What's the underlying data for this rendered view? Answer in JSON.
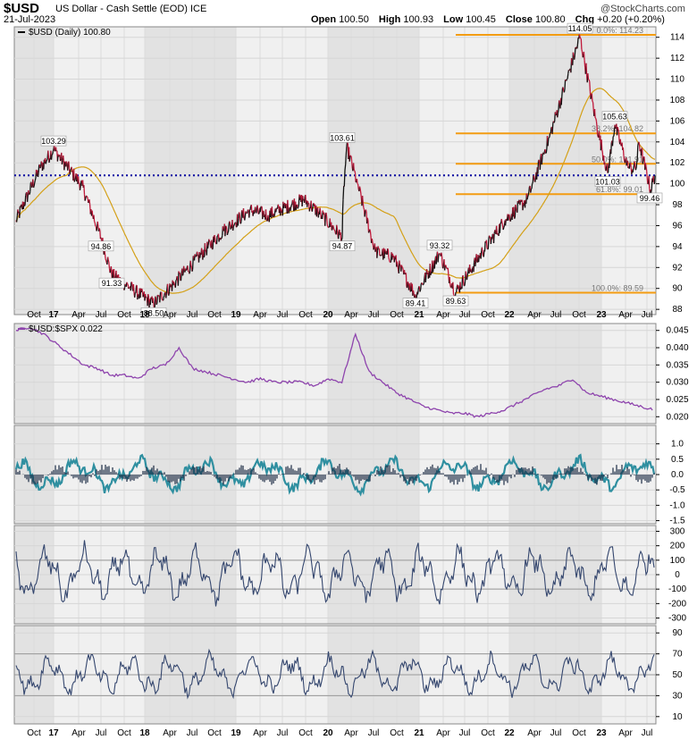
{
  "header": {
    "symbol": "$USD",
    "name": "US Dollar - Cash Settle (EOD)",
    "exchange": "ICE",
    "date": "21-Jul-2023",
    "open_label": "Open",
    "open": "100.50",
    "high_label": "High",
    "high": "100.93",
    "low_label": "Low",
    "low": "100.45",
    "close_label": "Close",
    "close": "100.80",
    "chg_label": "Chg",
    "chg": "+0.20 (+0.20%)",
    "brand": "@StockCharts.com"
  },
  "chart_data": [
    {
      "type": "line",
      "legend": "$USD (Daily) 100.80",
      "series_color": "#c0183a",
      "ma_color": "#d4a017",
      "ylim": [
        87.5,
        115
      ],
      "yticks": [
        88,
        90,
        92,
        94,
        96,
        98,
        100,
        102,
        104,
        106,
        108,
        110,
        112,
        114
      ],
      "x": [
        "Sep 2016",
        "Dec 2016",
        "Feb 2017",
        "May 2017",
        "Jul 2017",
        "Dec 2017",
        "Mar 2018",
        "Apr 2018",
        "Aug 2018",
        "Oct 2018",
        "Mar 2019",
        "Oct 2019",
        "Dec 2019",
        "Mar 2020",
        "Mar 2020 low",
        "Mar 2020 high",
        "May 2020",
        "Aug 2020",
        "Oct 2020",
        "Jan 2021",
        "Mar 2021",
        "May 2021",
        "Sep 2021",
        "Nov 2021",
        "Mar 2022",
        "Jun 2022",
        "Sep 2022",
        "Nov 2022",
        "Jan 2023",
        "Mar 2023",
        "Apr 2023",
        "May 2023",
        "Jun 2023",
        "Jul 2023 low",
        "Jul 2023"
      ],
      "values": [
        96.5,
        101.5,
        103.29,
        99.8,
        94.86,
        91.33,
        88.5,
        90.5,
        95.5,
        97.5,
        97.0,
        98.5,
        97.0,
        94.87,
        98.5,
        103.61,
        100.0,
        93.5,
        93.0,
        89.41,
        93.32,
        89.63,
        93.5,
        96.5,
        98.5,
        104.5,
        114.05,
        105.5,
        101.03,
        105.63,
        101.5,
        101.5,
        104.0,
        99.46,
        100.8
      ],
      "labels": [
        {
          "text": "103.29",
          "x": "Feb 2017",
          "y": 103.29
        },
        {
          "text": "94.86",
          "x": "Jul 2017",
          "y": 94.86
        },
        {
          "text": "91.33",
          "x": "Dec 2017",
          "y": 91.33
        },
        {
          "text": "88.50",
          "x": "Mar 2018",
          "y": 88.5
        },
        {
          "text": "103.61",
          "x": "Mar 2020",
          "y": 103.61
        },
        {
          "text": "94.87",
          "x": "Mar 2020",
          "y": 94.87
        },
        {
          "text": "93.32",
          "x": "Mar 2021",
          "y": 93.32
        },
        {
          "text": "89.41",
          "x": "Jan 2021",
          "y": 89.41
        },
        {
          "text": "89.63",
          "x": "May 2021",
          "y": 89.63
        },
        {
          "text": "114.05",
          "x": "Sep 2022",
          "y": 114.05
        },
        {
          "text": "105.63",
          "x": "Mar 2023",
          "y": 105.63
        },
        {
          "text": "101.03",
          "x": "Jan 2023",
          "y": 101.03
        },
        {
          "text": "99.46",
          "x": "Jul 2023",
          "y": 99.46
        }
      ],
      "fib": [
        {
          "text": "0.0%: 114.23",
          "value": 114.23
        },
        {
          "text": "38.2%: 104.82",
          "value": 104.82
        },
        {
          "text": "50.0%: 101.91",
          "value": 101.91
        },
        {
          "text": "61.8%: 99.01",
          "value": 99.01
        },
        {
          "text": "100.0%: 89.59",
          "value": 89.59
        }
      ],
      "fib_color": "#f39c12",
      "ref_line": 100.8,
      "ref_color": "#0000a0"
    },
    {
      "type": "line",
      "legend": "$USD:$SPX 0.022",
      "color": "#8e44ad",
      "ylim": [
        0.018,
        0.047
      ],
      "yticks": [
        0.02,
        0.025,
        0.03,
        0.035,
        0.04,
        0.045
      ],
      "ytick_labels": [
        "0.020",
        "0.025",
        "0.030",
        "0.035",
        "0.040",
        "0.045"
      ],
      "values": [
        0.045,
        0.046,
        0.044,
        0.041,
        0.038,
        0.035,
        0.034,
        0.032,
        0.032,
        0.031,
        0.034,
        0.035,
        0.04,
        0.034,
        0.033,
        0.032,
        0.031,
        0.03,
        0.031,
        0.03,
        0.03,
        0.03,
        0.029,
        0.031,
        0.03,
        0.044,
        0.033,
        0.03,
        0.027,
        0.025,
        0.023,
        0.022,
        0.021,
        0.021,
        0.02,
        0.021,
        0.022,
        0.024,
        0.026,
        0.028,
        0.029,
        0.031,
        0.027,
        0.026,
        0.025,
        0.024,
        0.023,
        0.022
      ]
    },
    {
      "type": "line",
      "ylim": [
        -1.6,
        1.6
      ],
      "yticks": [
        -1.5,
        -1.0,
        -0.5,
        0.0,
        0.5,
        1.0
      ],
      "ytick_labels": [
        "-1.5",
        "-1.0",
        "-0.5",
        "0.0",
        "0.5",
        "1.0"
      ],
      "colors": [
        "#2f8fa0",
        "#1b2a44"
      ]
    },
    {
      "type": "line",
      "ylim": [
        -340,
        340
      ],
      "yticks": [
        -300,
        -200,
        -100,
        0,
        100,
        200,
        300
      ],
      "ytick_labels": [
        "-300",
        "-200",
        "-100",
        "0",
        "100",
        "200",
        "300"
      ],
      "gridlines": [
        -100,
        100
      ],
      "color": "#34466e"
    },
    {
      "type": "line",
      "ylim": [
        3,
        97
      ],
      "yticks": [
        10,
        30,
        50,
        70,
        90
      ],
      "ytick_labels": [
        "10",
        "30",
        "50",
        "70",
        "90"
      ],
      "gridlines": [
        30,
        50,
        70
      ],
      "color": "#34466e"
    }
  ],
  "xaxis": {
    "labels": [
      "Oct",
      "17",
      "Apr",
      "Jul",
      "Oct",
      "18",
      "Apr",
      "Jul",
      "Oct",
      "19",
      "Apr",
      "Jul",
      "Oct",
      "20",
      "Apr",
      "Jul",
      "Oct",
      "21",
      "Apr",
      "Jul",
      "Oct",
      "22",
      "Apr",
      "Jul",
      "Oct",
      "23",
      "Apr",
      "Jul"
    ]
  }
}
